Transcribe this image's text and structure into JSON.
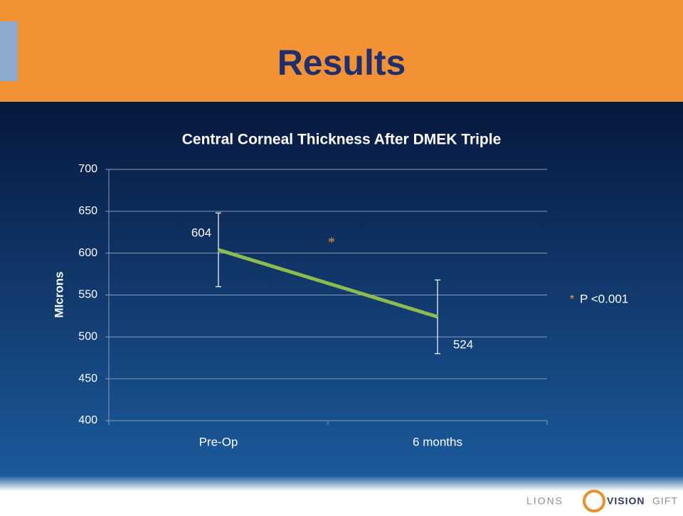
{
  "header": {
    "title": "Results"
  },
  "chart_data": {
    "type": "line",
    "title": "Central Corneal Thickness After DMEK Triple",
    "y_label": "MIcrons",
    "categories": [
      "Pre-Op",
      "6 months"
    ],
    "values": [
      604,
      524
    ],
    "errors": [
      44,
      44
    ],
    "color": "#8dbb4f",
    "ylim": [
      400,
      700
    ],
    "yticks": [
      400,
      450,
      500,
      550,
      600,
      650,
      700
    ],
    "grid": true,
    "annotation": "*",
    "note": {
      "symbol": "*",
      "text": "P <0.001"
    }
  },
  "logo": [
    "LIONS",
    "VISION",
    "GIFT"
  ]
}
